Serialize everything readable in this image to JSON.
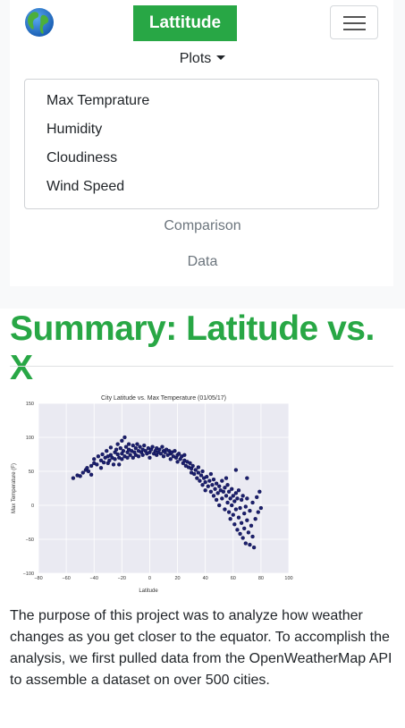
{
  "navbar": {
    "brand": "Lattitude",
    "dropdown_label": "Plots",
    "dropdown_items": [
      "Max Temprature",
      "Humidity",
      "Cloudiness",
      "Wind Speed"
    ],
    "links": [
      "Comparison",
      "Data"
    ]
  },
  "page": {
    "title": "Summary: Latitude vs. X",
    "description": "The purpose of this project was to analyze how weather changes as you get closer to the equator. To accomplish the analysis, we first pulled data from the OpenWeatherMap API to assemble a dataset on over 500 cities."
  },
  "colors": {
    "brand": "#28a745",
    "marker": "#1b1f6e",
    "plot_bg": "#eaeaf2"
  },
  "icons": [
    "globe-icon",
    "hamburger-icon",
    "caret-down-icon"
  ],
  "chart_data": {
    "type": "scatter",
    "title": "City Latitude vs. Max Temperature (01/05/17)",
    "xlabel": "Latitude",
    "ylabel": "Max Temperature (F)",
    "xlim": [
      -80,
      100
    ],
    "ylim": [
      -100,
      150
    ],
    "xticks": [
      -80,
      -60,
      -40,
      -20,
      0,
      20,
      40,
      60,
      80,
      100
    ],
    "yticks": [
      -100,
      -50,
      0,
      50,
      100,
      150
    ],
    "grid": true,
    "points": [
      [
        -55,
        40
      ],
      [
        -52,
        44
      ],
      [
        -50,
        43
      ],
      [
        -48,
        48
      ],
      [
        -46,
        52
      ],
      [
        -45,
        55
      ],
      [
        -44,
        50
      ],
      [
        -42,
        58
      ],
      [
        -42,
        45
      ],
      [
        -40,
        62
      ],
      [
        -40,
        68
      ],
      [
        -38,
        60
      ],
      [
        -37,
        72
      ],
      [
        -35,
        66
      ],
      [
        -35,
        55
      ],
      [
        -34,
        75
      ],
      [
        -33,
        63
      ],
      [
        -32,
        70
      ],
      [
        -31,
        80
      ],
      [
        -30,
        72
      ],
      [
        -30,
        62
      ],
      [
        -29,
        66
      ],
      [
        -28,
        74
      ],
      [
        -28,
        85
      ],
      [
        -27,
        70
      ],
      [
        -26,
        60
      ],
      [
        -25,
        78
      ],
      [
        -25,
        68
      ],
      [
        -24,
        82
      ],
      [
        -23,
        75
      ],
      [
        -23,
        90
      ],
      [
        -22,
        70
      ],
      [
        -22,
        60
      ],
      [
        -21,
        84
      ],
      [
        -20,
        76
      ],
      [
        -20,
        95
      ],
      [
        -20,
        68
      ],
      [
        -19,
        80
      ],
      [
        -18,
        72
      ],
      [
        -18,
        100
      ],
      [
        -17,
        86
      ],
      [
        -16,
        78
      ],
      [
        -16,
        70
      ],
      [
        -15,
        82
      ],
      [
        -15,
        90
      ],
      [
        -14,
        74
      ],
      [
        -13,
        80
      ],
      [
        -12,
        88
      ],
      [
        -12,
        70
      ],
      [
        -11,
        78
      ],
      [
        -10,
        84
      ],
      [
        -10,
        74
      ],
      [
        -9,
        90
      ],
      [
        -8,
        80
      ],
      [
        -8,
        72
      ],
      [
        -7,
        86
      ],
      [
        -6,
        78
      ],
      [
        -5,
        82
      ],
      [
        -5,
        74
      ],
      [
        -4,
        88
      ],
      [
        -3,
        80
      ],
      [
        -2,
        76
      ],
      [
        -1,
        84
      ],
      [
        0,
        78
      ],
      [
        0,
        70
      ],
      [
        1,
        82
      ],
      [
        2,
        86
      ],
      [
        3,
        76
      ],
      [
        4,
        80
      ],
      [
        5,
        84
      ],
      [
        5,
        74
      ],
      [
        6,
        78
      ],
      [
        7,
        82
      ],
      [
        8,
        76
      ],
      [
        9,
        86
      ],
      [
        10,
        80
      ],
      [
        10,
        72
      ],
      [
        11,
        78
      ],
      [
        12,
        82
      ],
      [
        13,
        74
      ],
      [
        14,
        80
      ],
      [
        15,
        76
      ],
      [
        15,
        68
      ],
      [
        16,
        78
      ],
      [
        17,
        72
      ],
      [
        18,
        80
      ],
      [
        19,
        70
      ],
      [
        20,
        74
      ],
      [
        20,
        64
      ],
      [
        21,
        76
      ],
      [
        22,
        68
      ],
      [
        23,
        72
      ],
      [
        24,
        62
      ],
      [
        25,
        66
      ],
      [
        25,
        74
      ],
      [
        26,
        58
      ],
      [
        27,
        64
      ],
      [
        28,
        56
      ],
      [
        29,
        62
      ],
      [
        30,
        54
      ],
      [
        30,
        48
      ],
      [
        31,
        58
      ],
      [
        32,
        46
      ],
      [
        33,
        52
      ],
      [
        34,
        40
      ],
      [
        35,
        48
      ],
      [
        35,
        56
      ],
      [
        36,
        36
      ],
      [
        37,
        44
      ],
      [
        38,
        30
      ],
      [
        38,
        50
      ],
      [
        39,
        40
      ],
      [
        40,
        34
      ],
      [
        40,
        22
      ],
      [
        41,
        42
      ],
      [
        42,
        28
      ],
      [
        43,
        36
      ],
      [
        44,
        20
      ],
      [
        44,
        46
      ],
      [
        45,
        30
      ],
      [
        46,
        14
      ],
      [
        46,
        38
      ],
      [
        47,
        24
      ],
      [
        48,
        32
      ],
      [
        48,
        8
      ],
      [
        49,
        18
      ],
      [
        50,
        28
      ],
      [
        50,
        0
      ],
      [
        51,
        22
      ],
      [
        52,
        36
      ],
      [
        52,
        10
      ],
      [
        53,
        20
      ],
      [
        54,
        -6
      ],
      [
        54,
        26
      ],
      [
        55,
        14
      ],
      [
        55,
        40
      ],
      [
        56,
        4
      ],
      [
        56,
        30
      ],
      [
        57,
        -10
      ],
      [
        57,
        20
      ],
      [
        58,
        10
      ],
      [
        58,
        -20
      ],
      [
        59,
        24
      ],
      [
        59,
        0
      ],
      [
        60,
        -14
      ],
      [
        60,
        14
      ],
      [
        61,
        6
      ],
      [
        61,
        -28
      ],
      [
        62,
        18
      ],
      [
        62,
        -6
      ],
      [
        63,
        -36
      ],
      [
        63,
        10
      ],
      [
        64,
        -18
      ],
      [
        64,
        22
      ],
      [
        65,
        -4
      ],
      [
        65,
        -42
      ],
      [
        66,
        8
      ],
      [
        66,
        -26
      ],
      [
        67,
        -48
      ],
      [
        67,
        14
      ],
      [
        68,
        -12
      ],
      [
        68,
        -34
      ],
      [
        69,
        -2
      ],
      [
        69,
        -56
      ],
      [
        70,
        10
      ],
      [
        70,
        -22
      ],
      [
        71,
        -40
      ],
      [
        72,
        -8
      ],
      [
        72,
        -58
      ],
      [
        73,
        -30
      ],
      [
        74,
        4
      ],
      [
        74,
        -46
      ],
      [
        75,
        -62
      ],
      [
        76,
        -20
      ],
      [
        77,
        12
      ],
      [
        78,
        -10
      ],
      [
        79,
        20
      ],
      [
        80,
        -4
      ],
      [
        70,
        40
      ],
      [
        62,
        52
      ]
    ]
  }
}
